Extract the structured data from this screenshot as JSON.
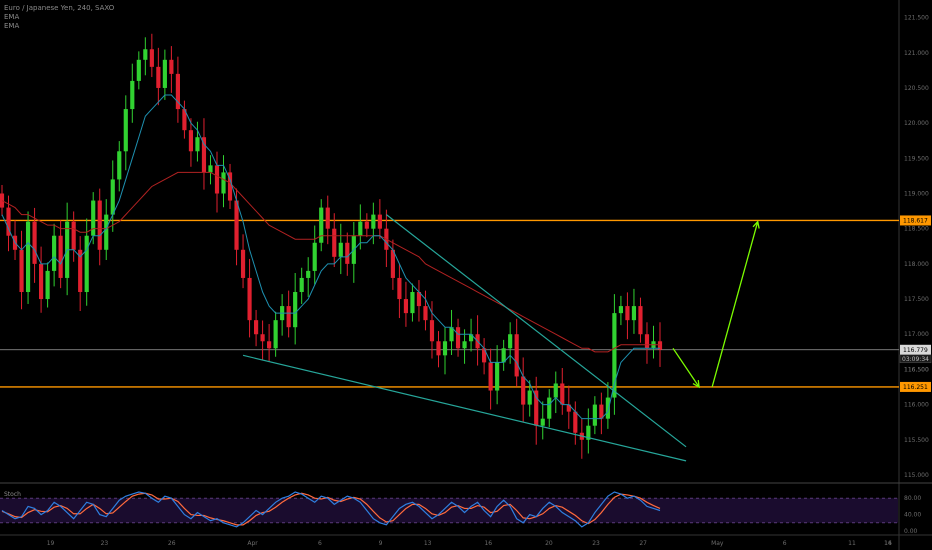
{
  "header": {
    "symbol_line": "Euro / Japanese Yen, 240, SAXO",
    "indicator_1": "EMA",
    "indicator_2": "EMA"
  },
  "stoch_panel": {
    "label": "Stoch"
  },
  "chart_data": {
    "type": "candlestick",
    "instrument": "Euro / Japanese Yen",
    "interval": "240",
    "source": "SAXO",
    "price_axis": {
      "ticks": [
        "121.500",
        "121.000",
        "120.500",
        "120.000",
        "119.500",
        "119.000",
        "118.500",
        "118.000",
        "117.500",
        "117.000",
        "116.500",
        "116.000",
        "115.500",
        "115.000"
      ],
      "range": [
        114.9,
        121.75
      ]
    },
    "time_axis": {
      "ticks": [
        "19",
        "23",
        "26",
        "Apr",
        "6",
        "9",
        "13",
        "16",
        "20",
        "23",
        "27",
        "May",
        "6",
        "11",
        "14",
        "16"
      ]
    },
    "horizontal_levels": [
      {
        "value": 118.617,
        "label": "118.617",
        "color": "#ff9800"
      },
      {
        "value": 116.251,
        "label": "116.251",
        "color": "#ff9800"
      },
      {
        "value": 116.779,
        "label": "116.779",
        "color": "#9e9e9e"
      }
    ],
    "last_price": {
      "value": 116.779,
      "countdown": "03:09:34"
    },
    "secondary_price_label": "116.500",
    "closes": [
      118.8,
      118.4,
      118.2,
      117.6,
      118.6,
      118.0,
      117.5,
      117.9,
      118.4,
      117.8,
      118.6,
      118.2,
      117.6,
      118.4,
      118.9,
      118.2,
      118.7,
      119.2,
      119.6,
      120.2,
      120.6,
      120.9,
      121.05,
      120.8,
      120.5,
      120.9,
      120.7,
      120.2,
      119.9,
      119.6,
      119.8,
      119.3,
      119.4,
      119.0,
      119.3,
      118.9,
      118.2,
      117.8,
      117.2,
      117.0,
      116.9,
      116.8,
      117.2,
      117.4,
      117.1,
      117.6,
      117.8,
      117.9,
      118.3,
      118.8,
      118.5,
      118.1,
      118.3,
      118.0,
      118.4,
      118.6,
      118.5,
      118.7,
      118.5,
      118.2,
      117.8,
      117.5,
      117.3,
      117.6,
      117.4,
      117.2,
      116.9,
      116.7,
      116.9,
      117.1,
      116.8,
      116.9,
      117.0,
      116.8,
      116.6,
      116.2,
      116.6,
      116.8,
      117.0,
      116.4,
      116.0,
      116.2,
      115.7,
      115.8,
      116.1,
      116.3,
      116.0,
      115.9,
      115.6,
      115.5,
      115.7,
      116.0,
      115.8,
      116.1,
      117.3,
      117.4,
      117.2,
      117.4,
      117.0,
      116.8,
      116.9,
      116.78
    ],
    "ema_fast": [
      118.7,
      118.5,
      118.3,
      118.2,
      118.3,
      118.2,
      118.0,
      118.0,
      118.1,
      118.0,
      118.2,
      118.2,
      118.1,
      118.2,
      118.4,
      118.4,
      118.5,
      118.7,
      118.9,
      119.2,
      119.5,
      119.8,
      120.1,
      120.2,
      120.3,
      120.4,
      120.4,
      120.3,
      120.2,
      120.0,
      119.9,
      119.7,
      119.6,
      119.4,
      119.4,
      119.2,
      118.9,
      118.6,
      118.2,
      117.9,
      117.6,
      117.4,
      117.3,
      117.3,
      117.3,
      117.3,
      117.4,
      117.5,
      117.7,
      117.9,
      118.0,
      118.0,
      118.1,
      118.1,
      118.2,
      118.3,
      118.3,
      118.4,
      118.4,
      118.3,
      118.2,
      118.0,
      117.8,
      117.7,
      117.6,
      117.5,
      117.3,
      117.2,
      117.1,
      117.1,
      117.0,
      117.0,
      117.0,
      116.9,
      116.8,
      116.6,
      116.6,
      116.6,
      116.7,
      116.6,
      116.4,
      116.3,
      116.1,
      116.0,
      116.0,
      116.1,
      116.0,
      116.0,
      115.9,
      115.8,
      115.8,
      115.8,
      115.8,
      115.9,
      116.3,
      116.6,
      116.7,
      116.8,
      116.8,
      116.8,
      116.8,
      116.8
    ],
    "ema_slow": [
      118.9,
      118.85,
      118.8,
      118.7,
      118.7,
      118.65,
      118.6,
      118.55,
      118.55,
      118.5,
      118.5,
      118.5,
      118.45,
      118.45,
      118.5,
      118.5,
      118.5,
      118.55,
      118.6,
      118.7,
      118.8,
      118.9,
      119.0,
      119.1,
      119.15,
      119.2,
      119.25,
      119.3,
      119.3,
      119.3,
      119.3,
      119.3,
      119.3,
      119.25,
      119.2,
      119.15,
      119.05,
      118.95,
      118.85,
      118.75,
      118.65,
      118.55,
      118.5,
      118.45,
      118.4,
      118.35,
      118.35,
      118.35,
      118.35,
      118.4,
      118.4,
      118.4,
      118.4,
      118.4,
      118.4,
      118.4,
      118.4,
      118.4,
      118.4,
      118.35,
      118.3,
      118.25,
      118.2,
      118.15,
      118.1,
      118.0,
      117.95,
      117.9,
      117.85,
      117.8,
      117.75,
      117.7,
      117.65,
      117.6,
      117.55,
      117.5,
      117.45,
      117.4,
      117.35,
      117.3,
      117.25,
      117.2,
      117.15,
      117.1,
      117.05,
      117.0,
      116.95,
      116.9,
      116.85,
      116.8,
      116.8,
      116.75,
      116.75,
      116.75,
      116.8,
      116.85,
      116.85,
      116.85,
      116.85,
      116.85,
      116.85,
      116.85
    ],
    "trendlines": [
      {
        "name": "upper-channel",
        "points": [
          [
            59,
            118.7
          ],
          [
            105,
            115.4
          ]
        ],
        "color": "#26a69a"
      },
      {
        "name": "lower-channel",
        "points": [
          [
            37,
            116.7
          ],
          [
            105,
            115.2
          ]
        ],
        "color": "#26a69a"
      }
    ],
    "projection_arrows": [
      {
        "points": [
          [
            103,
            116.8
          ],
          [
            107,
            116.25
          ]
        ],
        "color": "#7cfc00"
      },
      {
        "points": [
          [
            109,
            116.25
          ],
          [
            116,
            118.6
          ]
        ],
        "color": "#7cfc00"
      }
    ],
    "stochastic": {
      "axis_ticks": [
        "80.00",
        "40.00",
        "0.00"
      ],
      "k": [
        50,
        40,
        30,
        35,
        60,
        55,
        40,
        50,
        70,
        60,
        45,
        30,
        50,
        70,
        65,
        40,
        35,
        55,
        75,
        85,
        90,
        95,
        92,
        80,
        70,
        85,
        80,
        60,
        40,
        30,
        45,
        35,
        25,
        30,
        20,
        15,
        10,
        20,
        35,
        50,
        40,
        55,
        70,
        80,
        85,
        95,
        90,
        80,
        70,
        85,
        80,
        65,
        75,
        85,
        80,
        70,
        50,
        30,
        20,
        15,
        35,
        55,
        65,
        70,
        60,
        45,
        30,
        40,
        55,
        70,
        60,
        45,
        60,
        70,
        50,
        35,
        60,
        75,
        60,
        30,
        20,
        40,
        35,
        55,
        70,
        60,
        45,
        35,
        25,
        10,
        20,
        45,
        65,
        85,
        95,
        90,
        80,
        85,
        75,
        60,
        55,
        50
      ],
      "d": [
        48,
        42,
        35,
        33,
        45,
        52,
        48,
        47,
        58,
        62,
        55,
        42,
        42,
        55,
        65,
        55,
        42,
        44,
        58,
        72,
        85,
        90,
        92,
        88,
        78,
        78,
        80,
        72,
        55,
        40,
        38,
        38,
        32,
        28,
        25,
        20,
        15,
        15,
        25,
        38,
        45,
        48,
        58,
        70,
        80,
        88,
        92,
        88,
        80,
        78,
        82,
        75,
        72,
        78,
        82,
        78,
        65,
        48,
        32,
        22,
        25,
        40,
        55,
        65,
        65,
        55,
        42,
        38,
        45,
        58,
        62,
        55,
        55,
        62,
        58,
        45,
        48,
        62,
        65,
        50,
        32,
        30,
        35,
        42,
        55,
        62,
        58,
        48,
        38,
        25,
        18,
        28,
        45,
        65,
        82,
        90,
        88,
        85,
        80,
        70,
        62,
        55
      ]
    }
  }
}
